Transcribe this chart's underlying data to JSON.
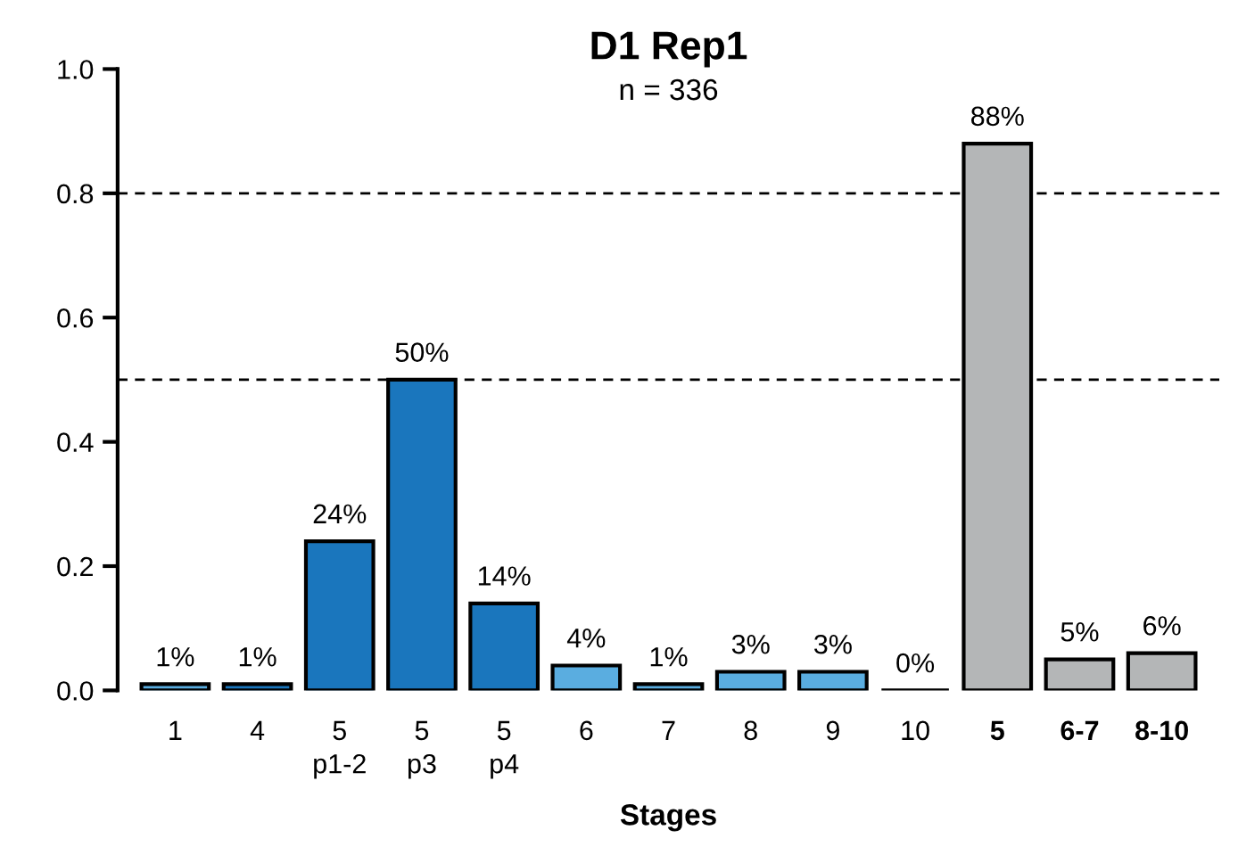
{
  "chart_data": {
    "type": "bar",
    "title": "D1 Rep1",
    "subtitle": "n = 336",
    "xlabel": "Stages",
    "categories": [
      "1",
      "4",
      "5\np1-2",
      "5\np3",
      "5\np4",
      "6",
      "7",
      "8",
      "9",
      "10",
      "5",
      "6-7",
      "8-10"
    ],
    "values": [
      0.01,
      0.01,
      0.24,
      0.5,
      0.14,
      0.04,
      0.01,
      0.03,
      0.03,
      0,
      0.88,
      0.05,
      0.06
    ],
    "value_labels": [
      "1%",
      "1%",
      "24%",
      "50%",
      "14%",
      "4%",
      "1%",
      "3%",
      "3%",
      "0%",
      "88%",
      "5%",
      "6%"
    ],
    "colors": [
      "#5aade0",
      "#1a76bd",
      "#1a76bd",
      "#1a76bd",
      "#1a76bd",
      "#5aade0",
      "#5aade0",
      "#5aade0",
      "#5aade0",
      "#000000",
      "#b4b6b7",
      "#b4b6b7",
      "#b4b6b7"
    ],
    "ylim": [
      0,
      1.0
    ],
    "yticks": [
      {
        "value": 0,
        "label": "0.0"
      },
      0.2,
      0.4,
      0.6,
      0.8,
      {
        "value": 1.0,
        "label": "1.0"
      }
    ],
    "ref_lines": [
      {
        "axis": "y",
        "value": 0.8,
        "label": null,
        "line_style": "dashed"
      },
      {
        "axis": "y",
        "value": 0.5,
        "label": null,
        "line_style": "dashed"
      }
    ],
    "grid": false,
    "legend": false
  }
}
